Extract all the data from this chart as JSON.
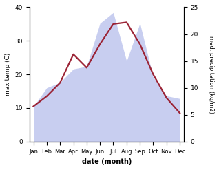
{
  "months": [
    "Jan",
    "Feb",
    "Mar",
    "Apr",
    "May",
    "Jun",
    "Jul",
    "Aug",
    "Sep",
    "Oct",
    "Nov",
    "Dec"
  ],
  "max_temp": [
    10.5,
    13.5,
    17.5,
    26,
    22,
    29,
    35,
    35.5,
    29,
    20,
    13,
    8.5
  ],
  "precipitation": [
    6.5,
    10,
    11,
    13.5,
    14,
    22,
    24,
    15,
    22,
    12,
    8.5,
    8
  ],
  "temp_color": "#9b2335",
  "precip_fill_color": "#c8cef0",
  "xlabel": "date (month)",
  "ylabel_left": "max temp (C)",
  "ylabel_right": "med. precipitation (kg/m2)",
  "ylim_left": [
    0,
    40
  ],
  "ylim_right": [
    0,
    25
  ],
  "bg_color": "#ffffff"
}
